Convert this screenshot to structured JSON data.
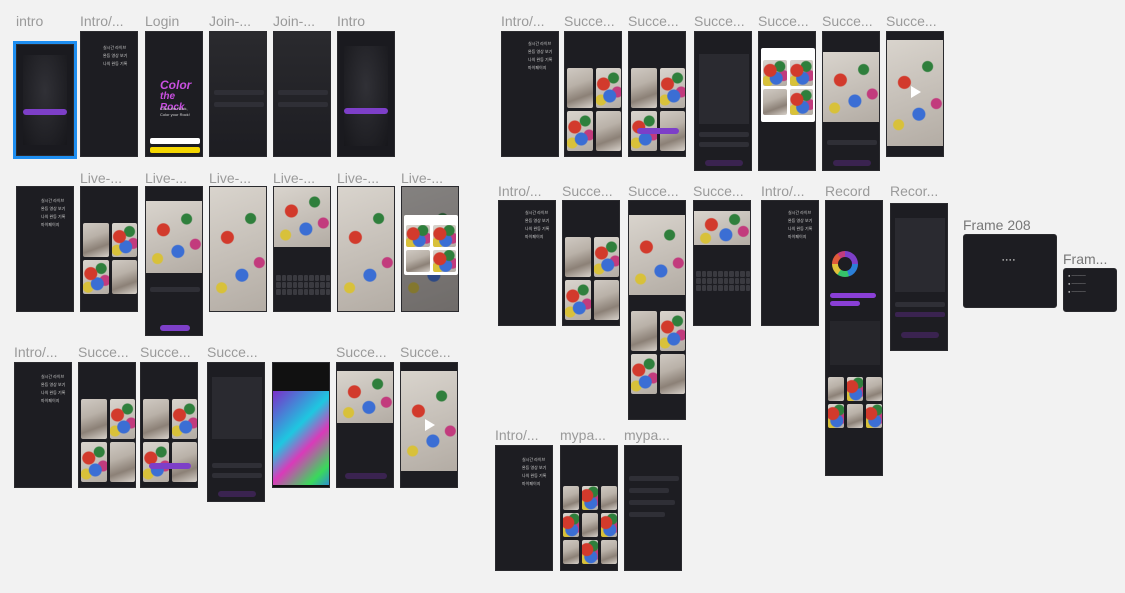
{
  "labels": {
    "intro": "intro",
    "intro_t": "Intro/...",
    "login": "Login",
    "join": "Join-...",
    "intro2": "Intro",
    "live": "Live-...",
    "succe": "Succe...",
    "succe_short": "Succe...",
    "record": "Record",
    "recor": "Recor...",
    "frame208": "Frame 208",
    "fram": "Fram...",
    "mypa": "mypa..."
  },
  "login": {
    "logo_line1": "Color",
    "logo_line2": "the Rock",
    "tagline1": "Color the Rock,",
    "tagline2": "Color your Rock!"
  },
  "menu": [
    "실시간 라이브",
    "완등 영상 보기",
    "나의 완등 기록",
    "마이페이지"
  ],
  "colors": {
    "accent": "#8a3fd6",
    "frame_bg": "#1d1d22",
    "canvas_bg": "#f2f2f2",
    "selection": "#1e8ef0"
  }
}
